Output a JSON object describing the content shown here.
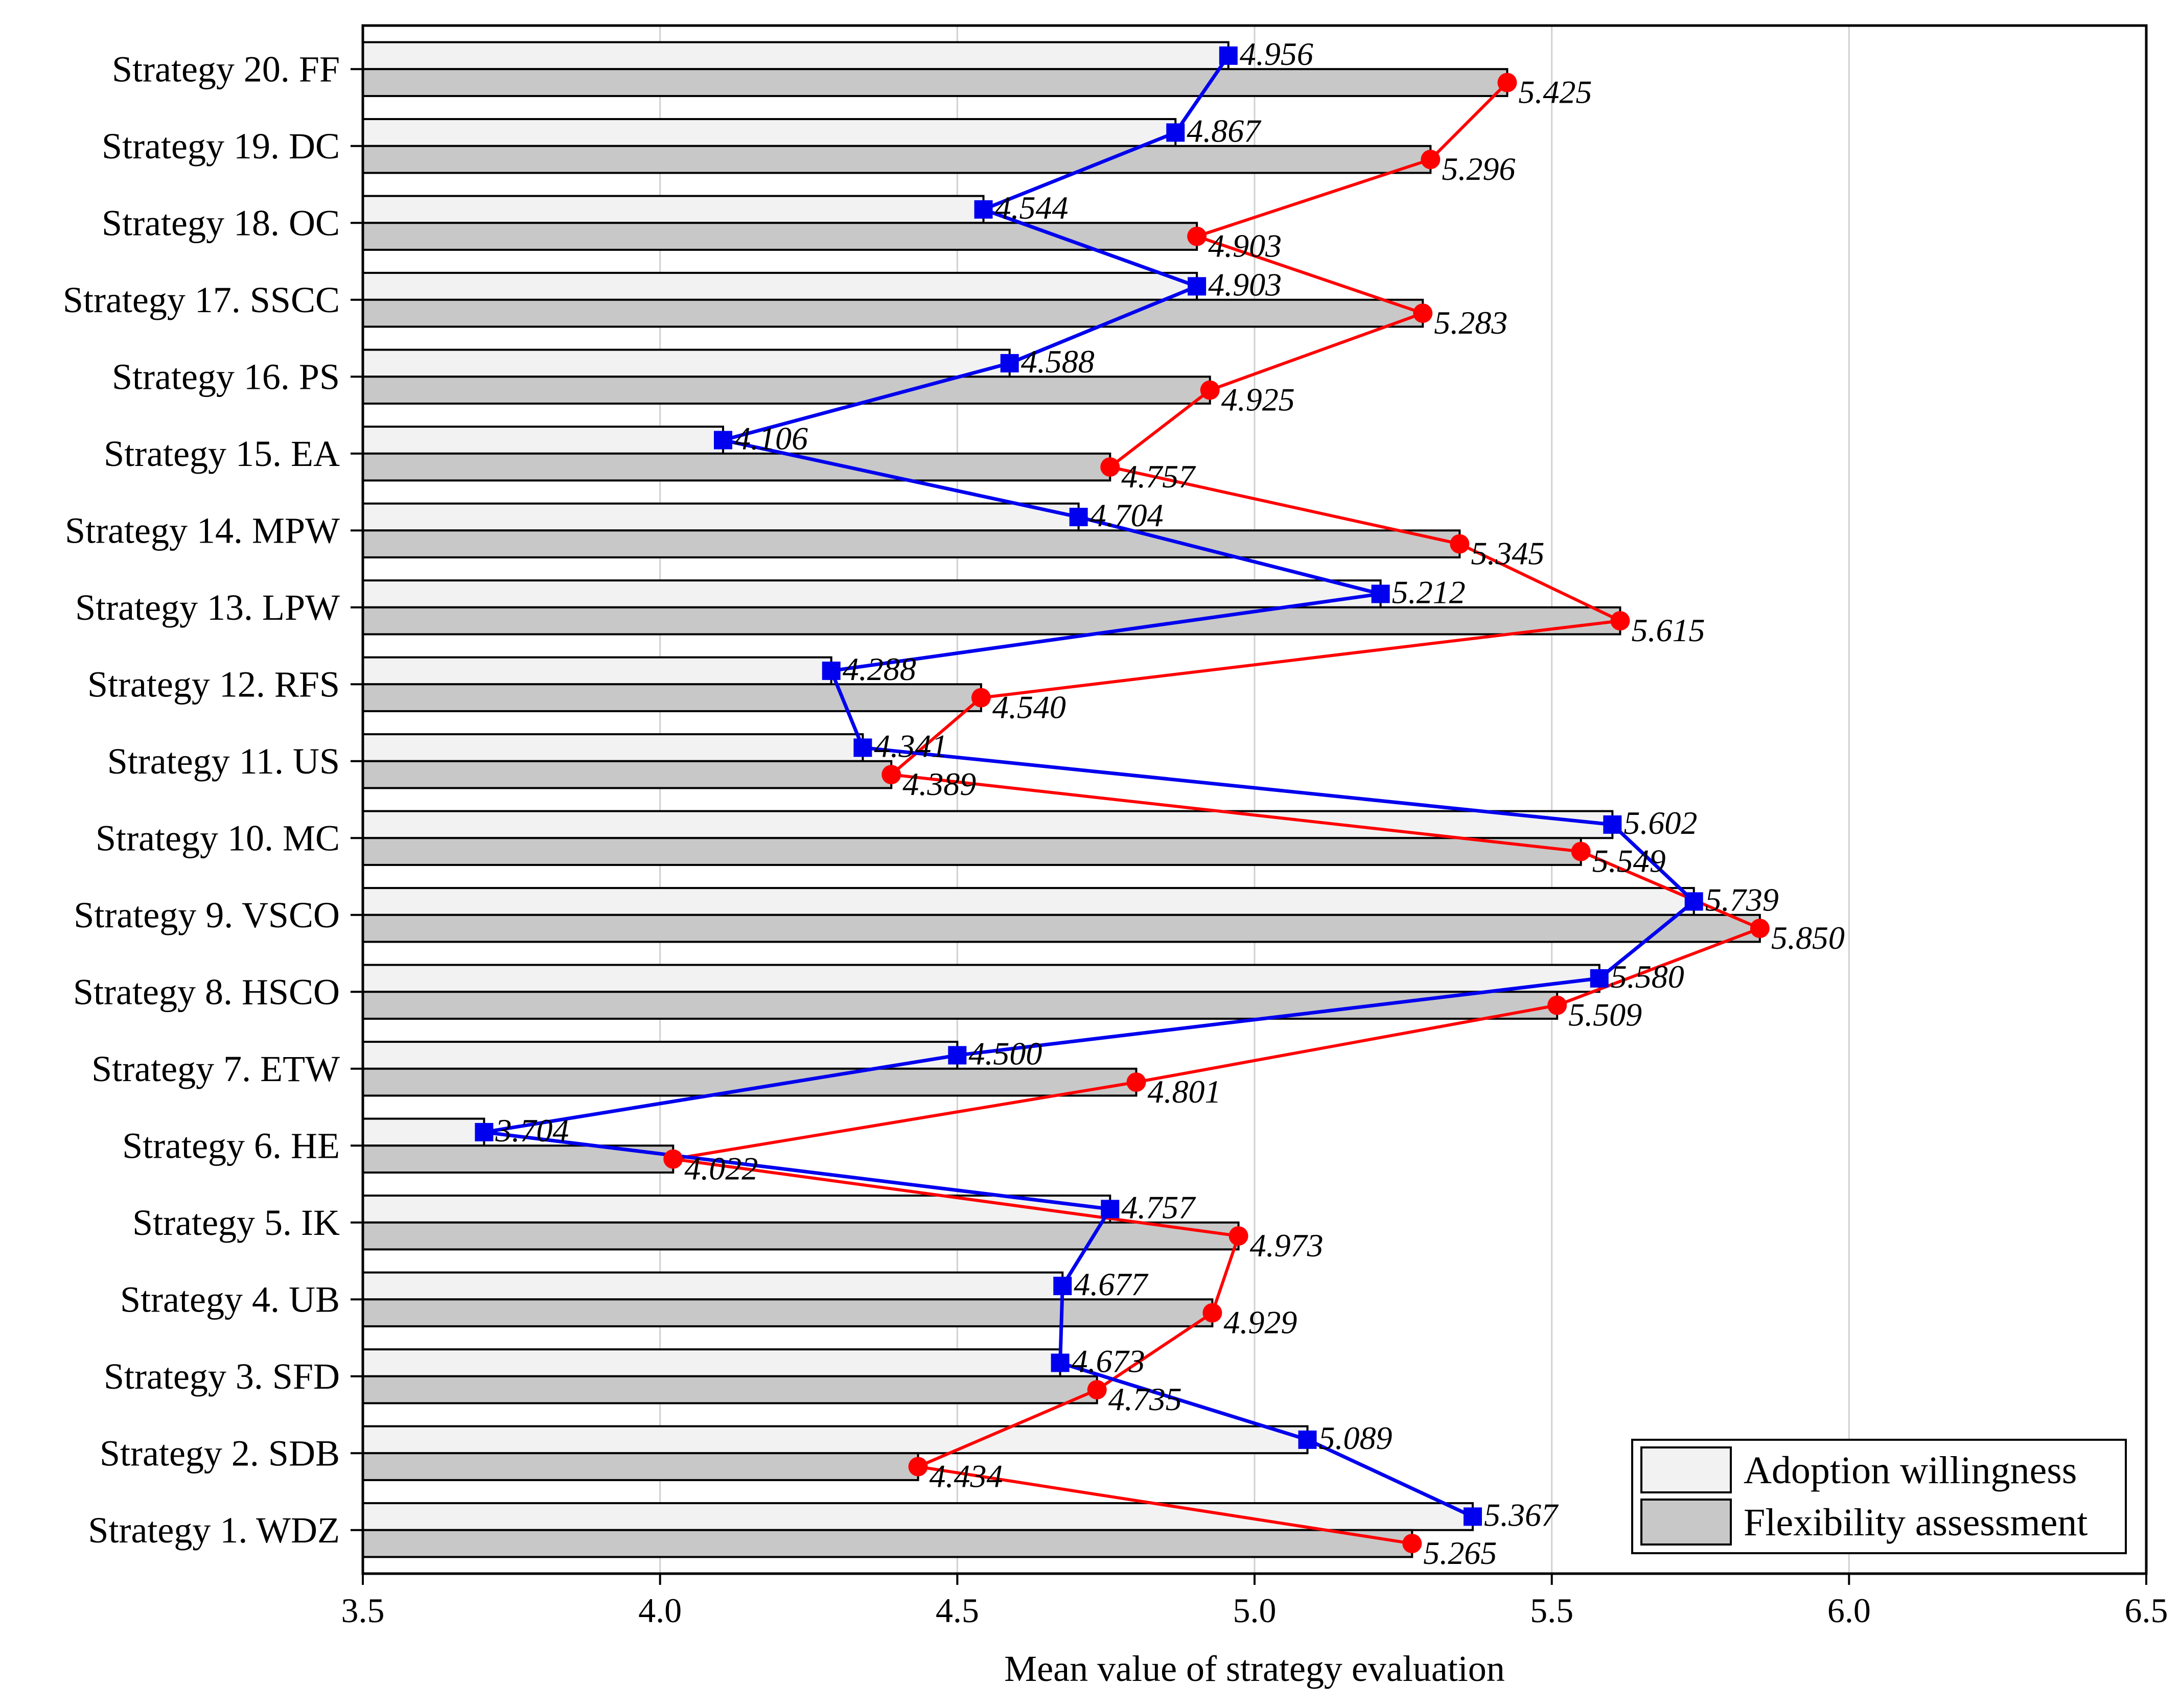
{
  "chart_data": {
    "type": "bar",
    "xlabel": "Mean value of strategy evaluation",
    "xlim": [
      3.5,
      6.5
    ],
    "x_ticks": [
      "3.5",
      "4.0",
      "4.5",
      "5.0",
      "5.5",
      "6.0",
      "6.5"
    ],
    "grid": "vertical",
    "legend_position": "bottom-right",
    "categories": [
      "Strategy 20. FF",
      "Strategy 19. DC",
      "Strategy 18. OC",
      "Strategy 17. SSCC",
      "Strategy 16. PS",
      "Strategy 15. EA",
      "Strategy 14. MPW",
      "Strategy 13. LPW",
      "Strategy 12. RFS",
      "Strategy 11. US",
      "Strategy 10. MC",
      "Strategy 9. VSCO",
      "Strategy 8. HSCO",
      "Strategy 7. ETW",
      "Strategy 6. HE",
      "Strategy 5. IK",
      "Strategy 4. UB",
      "Strategy 3. SFD",
      "Strategy 2. SDB",
      "Strategy 1. WDZ"
    ],
    "series": [
      {
        "name": "Adoption willingness",
        "bar_color": "#f2f2f2",
        "line_color": "#0000ee",
        "marker": "square",
        "values": [
          4.956,
          4.867,
          4.544,
          4.903,
          4.588,
          4.106,
          4.704,
          5.212,
          4.288,
          4.341,
          5.602,
          5.739,
          5.58,
          4.5,
          3.704,
          4.757,
          4.677,
          4.673,
          5.089,
          5.367
        ],
        "labels": [
          "4.956",
          "4.867",
          "4.544",
          "4.903",
          "4.588",
          "4.106",
          "4.704",
          "5.212",
          "4.288",
          "4.341",
          "5.602",
          "5.739",
          "5.580",
          "4.500",
          "3.704",
          "4.757",
          "4.677",
          "4.673",
          "5.089",
          "5.367"
        ]
      },
      {
        "name": "Flexibility assessment",
        "bar_color": "#c8c8c8",
        "line_color": "#ff0000",
        "marker": "circle",
        "values": [
          5.425,
          5.296,
          4.903,
          5.283,
          4.925,
          4.757,
          5.345,
          5.615,
          4.54,
          4.389,
          5.549,
          5.85,
          5.509,
          4.801,
          4.022,
          4.973,
          4.929,
          4.735,
          4.434,
          5.265
        ],
        "labels": [
          "5.425",
          "5.296",
          "4.903",
          "5.283",
          "4.925",
          "4.757",
          "5.345",
          "5.615",
          "4.540",
          "4.389",
          "5.549",
          "5.850",
          "5.509",
          "4.801",
          "4.022",
          "4.973",
          "4.929",
          "4.735",
          "4.434",
          "5.265"
        ]
      }
    ]
  }
}
